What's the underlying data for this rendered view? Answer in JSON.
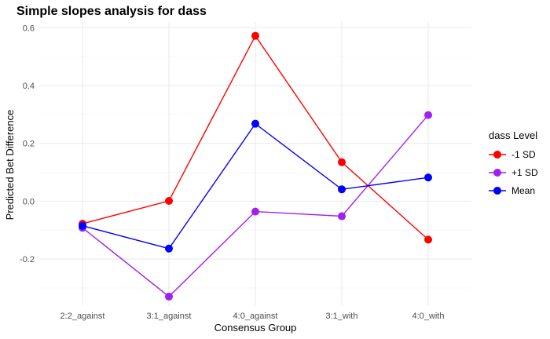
{
  "chart_data": {
    "type": "line",
    "title": "Simple slopes analysis for dass",
    "xlabel": "Consensus Group",
    "ylabel": "Predicted Bet Difference",
    "categories": [
      "2:2_against",
      "3:1_against",
      "4:0_against",
      "3:1_with",
      "4:0_with"
    ],
    "ylim": [
      -0.36,
      0.62
    ],
    "yticks": [
      -0.2,
      0.0,
      0.2,
      0.4,
      0.6
    ],
    "ytick_labels": [
      "-0.2",
      "0.0",
      "0.2",
      "0.4",
      "0.6"
    ],
    "grid": true,
    "legend": {
      "title": "dass Level",
      "placement": "right"
    },
    "series": [
      {
        "name": "-1 SD",
        "color": "#ff0000",
        "values": [
          -0.078,
          0.001,
          0.572,
          0.135,
          -0.133
        ]
      },
      {
        "name": "+1 SD",
        "color": "#a020f0",
        "values": [
          -0.092,
          -0.33,
          -0.036,
          -0.052,
          0.298
        ]
      },
      {
        "name": "Mean",
        "color": "#0000ff",
        "values": [
          -0.085,
          -0.164,
          0.268,
          0.041,
          0.082
        ]
      }
    ]
  }
}
